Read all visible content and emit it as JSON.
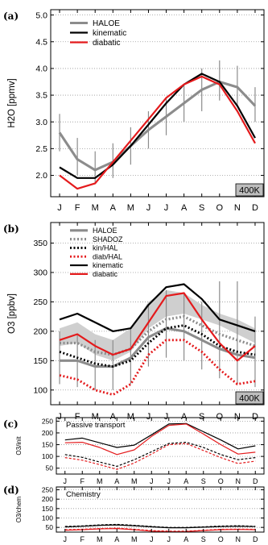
{
  "chart_data": [
    {
      "type": "line",
      "panel_label": "(a)",
      "ylabel": "H2O [ppmv]",
      "badge": "400K",
      "ylim": [
        1.6,
        5.1
      ],
      "yticks": [
        "2.0",
        "2.5",
        "3.0",
        "3.5",
        "4.0",
        "4.5",
        "5.0"
      ],
      "ytick_values": [
        2.0,
        2.5,
        3.0,
        3.5,
        4.0,
        4.5,
        5.0
      ],
      "categories": [
        "J",
        "F",
        "M",
        "A",
        "M",
        "J",
        "J",
        "A",
        "S",
        "O",
        "N",
        "D"
      ],
      "grid": "dotted",
      "legend": "top-left",
      "series": [
        {
          "name": "HALOE",
          "color": "#8c8c8c",
          "style": "thick",
          "values": [
            2.8,
            2.3,
            2.1,
            2.25,
            2.55,
            2.85,
            3.1,
            3.35,
            3.6,
            3.75,
            3.65,
            3.3
          ],
          "error_low": [
            2.45,
            2.0,
            1.85,
            1.95,
            2.2,
            2.5,
            2.75,
            3.0,
            3.2,
            3.4,
            3.3,
            3.0
          ],
          "error_high": [
            3.15,
            2.7,
            2.45,
            2.6,
            2.9,
            3.2,
            3.45,
            3.7,
            4.0,
            4.15,
            4.05,
            3.65
          ]
        },
        {
          "name": "kinematic",
          "color": "#000000",
          "style": "solid",
          "values": [
            2.15,
            1.95,
            1.95,
            2.2,
            2.55,
            2.95,
            3.35,
            3.7,
            3.9,
            3.75,
            3.3,
            2.7
          ]
        },
        {
          "name": "diabatic",
          "color": "#e41a1c",
          "style": "solid",
          "values": [
            2.0,
            1.75,
            1.85,
            2.25,
            2.65,
            3.05,
            3.45,
            3.7,
            3.85,
            3.7,
            3.2,
            2.6
          ]
        }
      ]
    },
    {
      "type": "line",
      "panel_label": "(b)",
      "ylabel": "O3 [ppbv]",
      "badge": "400K",
      "ylim": [
        75,
        385
      ],
      "yticks": [
        "100",
        "150",
        "200",
        "250",
        "300",
        "350"
      ],
      "ytick_values": [
        100,
        150,
        200,
        250,
        300,
        350
      ],
      "categories": [
        "J",
        "F",
        "M",
        "A",
        "M",
        "J",
        "J",
        "A",
        "S",
        "O",
        "N",
        "D"
      ],
      "grid": "dotted",
      "legend": "top-left",
      "shaded_band": {
        "low": [
          175,
          180,
          160,
          150,
          165,
          205,
          225,
          230,
          220,
          210,
          195,
          180
        ],
        "high": [
          205,
          215,
          195,
          185,
          205,
          250,
          270,
          265,
          245,
          230,
          220,
          205
        ]
      },
      "series": [
        {
          "name": "HALOE",
          "color": "#8c8c8c",
          "style": "thick",
          "values": [
            150,
            150,
            140,
            140,
            155,
            190,
            205,
            200,
            185,
            170,
            160,
            155
          ],
          "error_low": [
            110,
            105,
            100,
            100,
            110,
            140,
            155,
            150,
            135,
            120,
            110,
            105
          ],
          "error_high": [
            200,
            195,
            185,
            185,
            205,
            245,
            270,
            265,
            250,
            285,
            285,
            225
          ]
        },
        {
          "name": "SHADOZ",
          "color": "#8c8c8c",
          "style": "dotted-thick",
          "values": [
            180,
            180,
            165,
            160,
            170,
            200,
            220,
            225,
            210,
            195,
            185,
            175
          ]
        },
        {
          "name": "kin/HAL",
          "color": "#000000",
          "style": "dotted",
          "values": [
            165,
            155,
            145,
            140,
            150,
            180,
            205,
            210,
            195,
            175,
            165,
            160
          ]
        },
        {
          "name": "diab/HAL",
          "color": "#e41a1c",
          "style": "dotted",
          "values": [
            125,
            118,
            100,
            92,
            110,
            160,
            185,
            185,
            165,
            135,
            110,
            115
          ]
        },
        {
          "name": "kinematic",
          "color": "#000000",
          "style": "solid",
          "values": [
            220,
            230,
            215,
            200,
            205,
            245,
            275,
            280,
            255,
            220,
            210,
            200
          ]
        },
        {
          "name": "diabatic",
          "color": "#e41a1c",
          "style": "solid",
          "values": [
            185,
            195,
            175,
            160,
            170,
            215,
            260,
            265,
            220,
            180,
            150,
            175
          ]
        }
      ]
    },
    {
      "type": "line",
      "panel_label": "(c)",
      "ylabel": "O3/init",
      "inner_title": "Passive transport",
      "ylim": [
        25,
        265
      ],
      "yticks": [
        "50",
        "100",
        "150",
        "200",
        "250"
      ],
      "ytick_values": [
        50,
        100,
        150,
        200,
        250
      ],
      "categories": [
        "J",
        "F",
        "M",
        "A",
        "M",
        "J",
        "J",
        "A",
        "S",
        "O",
        "N",
        "D"
      ],
      "grid": "dotted",
      "series": [
        {
          "name": "",
          "color": "#000000",
          "style": "solid",
          "values": [
            170,
            178,
            158,
            138,
            148,
            192,
            238,
            240,
            205,
            170,
            132,
            145
          ]
        },
        {
          "name": "",
          "color": "#e41a1c",
          "style": "solid",
          "values": [
            158,
            160,
            138,
            108,
            128,
            185,
            232,
            238,
            195,
            150,
            110,
            118
          ]
        },
        {
          "name": "",
          "color": "#000000",
          "style": "dashed",
          "values": [
            108,
            96,
            76,
            58,
            86,
            120,
            155,
            160,
            138,
            108,
            86,
            95
          ]
        },
        {
          "name": "",
          "color": "#e41a1c",
          "style": "dashed",
          "values": [
            95,
            84,
            65,
            45,
            72,
            110,
            150,
            155,
            125,
            95,
            70,
            80
          ]
        }
      ]
    },
    {
      "type": "line",
      "panel_label": "(d)",
      "ylabel": "O3/chem",
      "inner_title": "Chemistry",
      "ylim": [
        25,
        265
      ],
      "yticks": [
        "50",
        "100",
        "150",
        "200",
        "250"
      ],
      "ytick_values": [
        50,
        100,
        150,
        200,
        250
      ],
      "categories": [
        "J",
        "F",
        "M",
        "A",
        "M",
        "J",
        "J",
        "A",
        "S",
        "O",
        "N",
        "D"
      ],
      "grid": "dotted",
      "series": [
        {
          "name": "",
          "color": "#000000",
          "style": "solid",
          "values": [
            52,
            56,
            61,
            63,
            59,
            53,
            48,
            48,
            51,
            54,
            56,
            54
          ]
        },
        {
          "name": "",
          "color": "#e41a1c",
          "style": "solid",
          "values": [
            35,
            38,
            42,
            44,
            38,
            30,
            27,
            28,
            33,
            38,
            39,
            38
          ]
        },
        {
          "name": "",
          "color": "#000000",
          "style": "dashed",
          "values": [
            55,
            58,
            63,
            66,
            61,
            55,
            50,
            50,
            53,
            57,
            59,
            56
          ]
        },
        {
          "name": "",
          "color": "#e41a1c",
          "style": "dashed",
          "values": [
            38,
            40,
            44,
            46,
            40,
            33,
            30,
            30,
            35,
            40,
            41,
            40
          ]
        }
      ]
    }
  ]
}
